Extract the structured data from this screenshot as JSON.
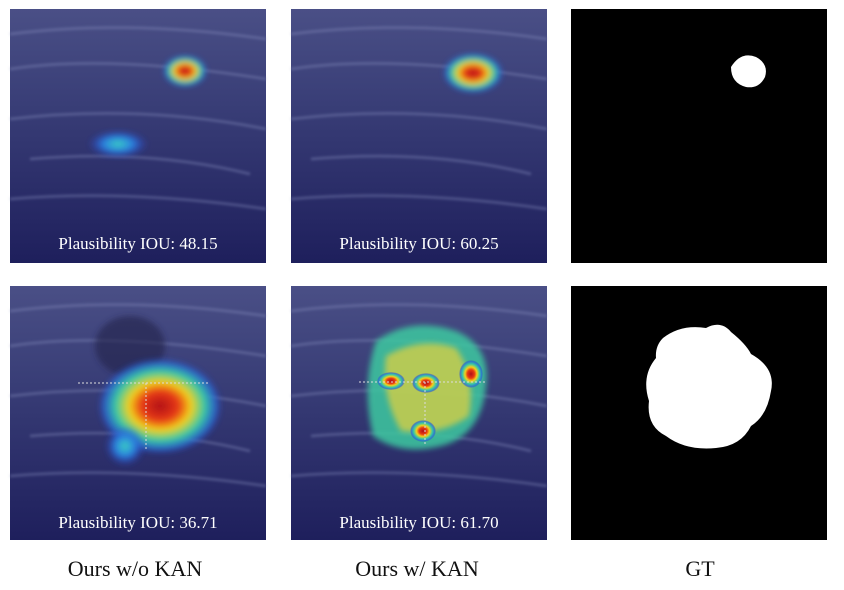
{
  "figure": {
    "panels": [
      {
        "caption": "Plausibility IOU: 48.15"
      },
      {
        "caption": "Plausibility IOU: 60.25"
      },
      {
        "caption": "Plausibility IOU: 36.71"
      },
      {
        "caption": "Plausibility IOU: 61.70"
      }
    ],
    "column_labels": [
      "Ours w/o KAN",
      "Ours w/ KAN",
      "GT"
    ]
  }
}
